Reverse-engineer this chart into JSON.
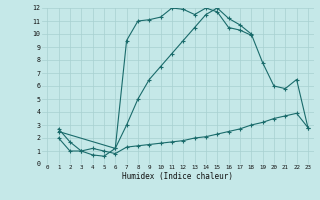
{
  "title": "",
  "xlabel": "Humidex (Indice chaleur)",
  "bg_color": "#c5e8e8",
  "line_color": "#1a6b6b",
  "grid_color": "#a8d0d0",
  "xlim": [
    -0.5,
    23.5
  ],
  "ylim": [
    0,
    12
  ],
  "xticks": [
    0,
    1,
    2,
    3,
    4,
    5,
    6,
    7,
    8,
    9,
    10,
    11,
    12,
    13,
    14,
    15,
    16,
    17,
    18,
    19,
    20,
    21,
    22,
    23
  ],
  "yticks": [
    0,
    1,
    2,
    3,
    4,
    5,
    6,
    7,
    8,
    9,
    10,
    11,
    12
  ],
  "line1_x": [
    1,
    2,
    3,
    4,
    5,
    6,
    7,
    8,
    9,
    10,
    11,
    12,
    13,
    14,
    15,
    16,
    17,
    18
  ],
  "line1_y": [
    2.0,
    1.0,
    1.0,
    0.7,
    0.6,
    1.2,
    9.5,
    11.0,
    11.1,
    11.3,
    12.0,
    11.9,
    11.5,
    12.0,
    11.7,
    10.5,
    10.3,
    9.9
  ],
  "line2_x": [
    1,
    2,
    3,
    4,
    5,
    6,
    7,
    8,
    9,
    10,
    11,
    12,
    13,
    14,
    15,
    16,
    17,
    18,
    19,
    20,
    21,
    22,
    23
  ],
  "line2_y": [
    2.7,
    1.7,
    1.0,
    1.2,
    1.0,
    0.8,
    1.3,
    1.4,
    1.5,
    1.6,
    1.7,
    1.8,
    2.0,
    2.1,
    2.3,
    2.5,
    2.7,
    3.0,
    3.2,
    3.5,
    3.7,
    3.9,
    2.8
  ],
  "line3_x": [
    1,
    6,
    7,
    8,
    9,
    10,
    11,
    12,
    13,
    14,
    15,
    16,
    17,
    18,
    19,
    20,
    21,
    22,
    23
  ],
  "line3_y": [
    2.5,
    1.2,
    3.0,
    5.0,
    6.5,
    7.5,
    8.5,
    9.5,
    10.5,
    11.5,
    12.0,
    11.2,
    10.7,
    10.0,
    7.8,
    6.0,
    5.8,
    6.5,
    2.8
  ]
}
